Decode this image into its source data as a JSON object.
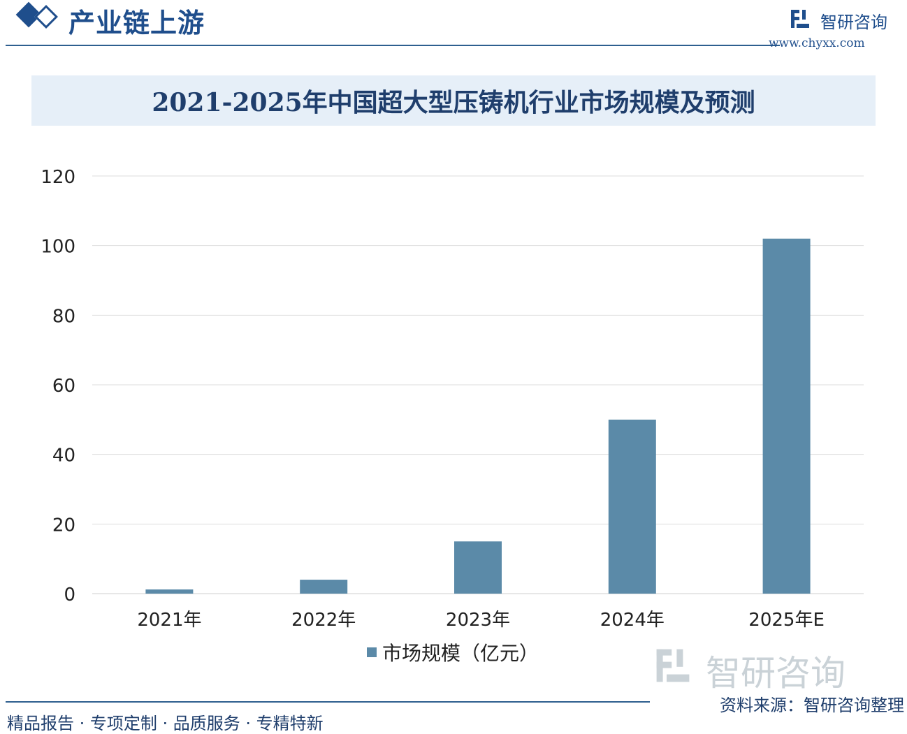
{
  "header": {
    "section_title": "产业链上游",
    "brand_name": "智研咨询",
    "brand_url": "www.chyxx.com"
  },
  "chart_data": {
    "type": "bar",
    "title": "2021-2025年中国超大型压铸机行业市场规模及预测",
    "categories": [
      "2021年",
      "2022年",
      "2023年",
      "2024年",
      "2025年E"
    ],
    "series": [
      {
        "name": "市场规模（亿元）",
        "values": [
          1.2,
          4,
          15,
          50,
          102
        ]
      }
    ],
    "yticks": [
      "0",
      "20",
      "40",
      "60",
      "80",
      "100",
      "120"
    ],
    "ylim": [
      0,
      120
    ],
    "grid": true,
    "legend": "bottom-center",
    "bar_color": "#5b8aa8"
  },
  "footer": {
    "tagline": "精品报告 · 专项定制 · 品质服务 · 专精特新",
    "source": "资料来源：智研咨询整理"
  },
  "watermark": {
    "brand_name": "智研咨询"
  },
  "colors": {
    "primary": "#1f4e8c",
    "bar": "#5b8aa8",
    "band": "#e6eff8"
  }
}
